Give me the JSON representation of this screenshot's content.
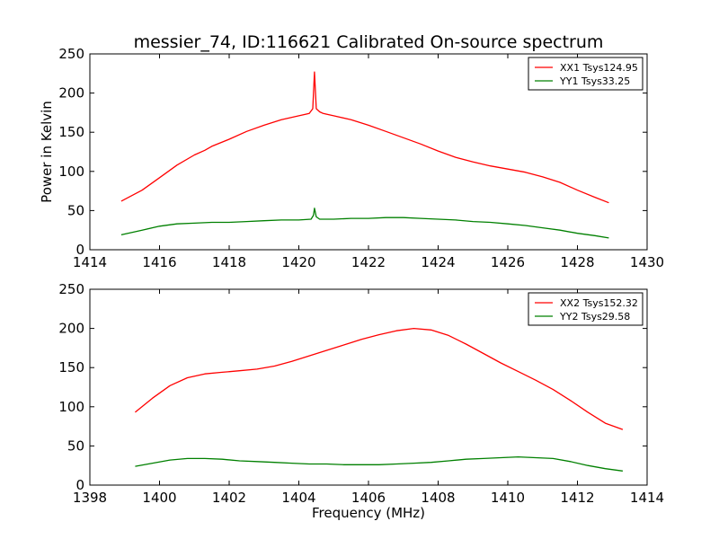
{
  "chart_data": [
    {
      "type": "line",
      "title": "messier_74, ID:116621 Calibrated On-source spectrum",
      "xlabel": "",
      "ylabel": "Power in Kelvin",
      "xlim": [
        1414,
        1430
      ],
      "ylim": [
        0,
        250
      ],
      "xticks": [
        "1414",
        "1416",
        "1418",
        "1420",
        "1422",
        "1424",
        "1426",
        "1428",
        "1430"
      ],
      "yticks": [
        "0",
        "50",
        "100",
        "150",
        "200",
        "250"
      ],
      "grid": false,
      "legend_position": "top-right",
      "series": [
        {
          "name": "XX1 Tsys124.95",
          "color": "#ff0000",
          "x": [
            1414.9,
            1415.5,
            1416,
            1416.5,
            1417,
            1417.3,
            1417.5,
            1418,
            1418.5,
            1419,
            1419.5,
            1420,
            1420.3,
            1420.4,
            1420.45,
            1420.5,
            1420.6,
            1420.7,
            1421,
            1421.5,
            1422,
            1422.5,
            1423,
            1423.5,
            1424,
            1424.5,
            1425,
            1425.5,
            1426,
            1426.5,
            1427,
            1427.5,
            1428,
            1428.5,
            1428.9
          ],
          "values": [
            62,
            76,
            92,
            108,
            121,
            127,
            132,
            141,
            151,
            159,
            166,
            171,
            174,
            180,
            227,
            180,
            176,
            174,
            171,
            166,
            159,
            151,
            143,
            135,
            126,
            118,
            112,
            107,
            103,
            99,
            93,
            86,
            76,
            67,
            60
          ]
        },
        {
          "name": "YY1 Tsys33.25",
          "color": "#008000",
          "x": [
            1414.9,
            1415.5,
            1416,
            1416.5,
            1417,
            1417.5,
            1418,
            1418.5,
            1419,
            1419.5,
            1420,
            1420.35,
            1420.42,
            1420.45,
            1420.5,
            1420.6,
            1421,
            1421.5,
            1422,
            1422.5,
            1423,
            1423.5,
            1424,
            1424.5,
            1425,
            1425.5,
            1426,
            1426.5,
            1427,
            1427.5,
            1428,
            1428.5,
            1428.9
          ],
          "values": [
            19,
            25,
            30,
            33,
            34,
            35,
            35,
            36,
            37,
            38,
            38,
            39,
            44,
            53,
            42,
            39,
            39,
            40,
            40,
            41,
            41,
            40,
            39,
            38,
            36,
            35,
            33,
            31,
            28,
            25,
            21,
            18,
            15
          ]
        }
      ]
    },
    {
      "type": "line",
      "title": "",
      "xlabel": "Frequency (MHz)",
      "ylabel": "",
      "xlim": [
        1398,
        1414
      ],
      "ylim": [
        0,
        250
      ],
      "xticks": [
        "1398",
        "1400",
        "1402",
        "1404",
        "1406",
        "1408",
        "1410",
        "1412",
        "1414"
      ],
      "yticks": [
        "0",
        "50",
        "100",
        "150",
        "200",
        "250"
      ],
      "grid": false,
      "legend_position": "top-right",
      "series": [
        {
          "name": "XX2 Tsys152.32",
          "color": "#ff0000",
          "x": [
            1399.3,
            1399.8,
            1400.3,
            1400.8,
            1401.3,
            1401.8,
            1402.3,
            1402.8,
            1403.3,
            1403.8,
            1404.3,
            1404.8,
            1405.3,
            1405.8,
            1406.3,
            1406.8,
            1407.3,
            1407.8,
            1408.3,
            1408.8,
            1409.3,
            1409.8,
            1410.3,
            1410.8,
            1411.3,
            1411.8,
            1412.3,
            1412.8,
            1413.3
          ],
          "values": [
            93,
            111,
            127,
            137,
            142,
            144,
            146,
            148,
            152,
            158,
            165,
            172,
            179,
            186,
            192,
            197,
            200,
            198,
            191,
            180,
            168,
            156,
            145,
            134,
            122,
            108,
            93,
            79,
            71
          ]
        },
        {
          "name": "YY2 Tsys29.58",
          "color": "#008000",
          "x": [
            1399.3,
            1399.8,
            1400.3,
            1400.8,
            1401.3,
            1401.8,
            1402.3,
            1402.8,
            1403.3,
            1403.8,
            1404.3,
            1404.8,
            1405.3,
            1405.8,
            1406.3,
            1406.8,
            1407.3,
            1407.8,
            1408.3,
            1408.8,
            1409.3,
            1409.8,
            1410.3,
            1410.8,
            1411.3,
            1411.8,
            1412.3,
            1412.8,
            1413.3
          ],
          "values": [
            24,
            28,
            32,
            34,
            34,
            33,
            31,
            30,
            29,
            28,
            27,
            27,
            26,
            26,
            26,
            27,
            28,
            29,
            31,
            33,
            34,
            35,
            36,
            35,
            34,
            30,
            25,
            21,
            18
          ]
        }
      ]
    }
  ]
}
